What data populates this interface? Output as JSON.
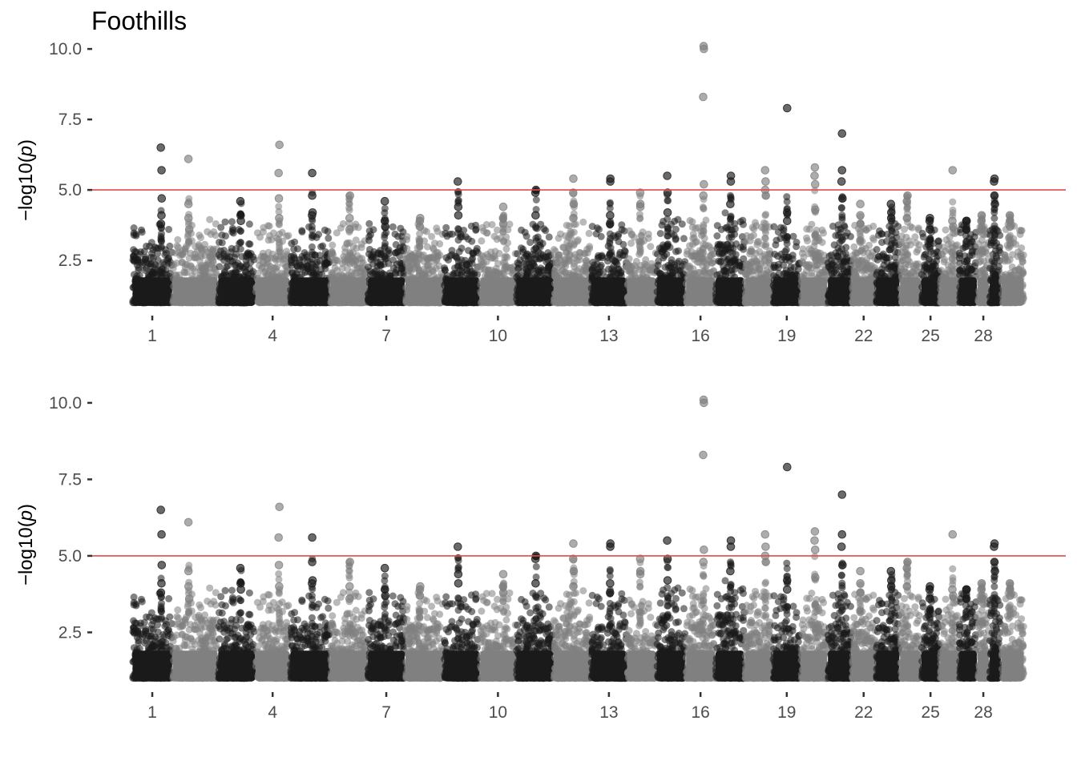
{
  "title": "Foothills",
  "colors": {
    "dark": "#1a1a1a",
    "light": "#808080",
    "threshold": "#e34a4a",
    "tick": "#333333"
  },
  "chart_data": [
    {
      "type": "scatter",
      "kind": "manhattan",
      "ylabel": "-log10(p)",
      "ylabel_prefix": "−log10(",
      "ylabel_var": "p",
      "ylabel_suffix": ")",
      "ylim": [
        0.6,
        10.6
      ],
      "yticks": [
        {
          "v": 2.5,
          "label": "2.5"
        },
        {
          "v": 5.0,
          "label": "5.0"
        },
        {
          "v": 7.5,
          "label": "7.5"
        },
        {
          "v": 10.0,
          "label": "10.0"
        }
      ],
      "threshold": 5.0,
      "xticks": [
        {
          "chr": 1,
          "label": "1"
        },
        {
          "chr": 4,
          "label": "4"
        },
        {
          "chr": 7,
          "label": "7"
        },
        {
          "chr": 10,
          "label": "10"
        },
        {
          "chr": 13,
          "label": "13"
        },
        {
          "chr": 16,
          "label": "16"
        },
        {
          "chr": 19,
          "label": "19"
        },
        {
          "chr": 22,
          "label": "22"
        },
        {
          "chr": 25,
          "label": "25"
        },
        {
          "chr": 28,
          "label": "28"
        }
      ],
      "chromosomes": [
        {
          "chr": 1,
          "start": 0,
          "end": 30,
          "baseline_max": 2.9,
          "peaks": [
            6.5,
            5.7,
            4.7,
            4.1,
            3.8
          ]
        },
        {
          "chr": 2,
          "start": 30,
          "end": 64,
          "baseline_max": 3.0,
          "peaks": [
            6.1,
            4.5,
            4.0,
            3.6
          ]
        },
        {
          "chr": 3,
          "start": 64,
          "end": 92,
          "baseline_max": 2.9,
          "peaks": [
            4.6,
            4.1,
            3.9
          ]
        },
        {
          "chr": 4,
          "start": 92,
          "end": 118,
          "baseline_max": 2.8,
          "peaks": [
            6.6,
            5.6,
            4.7,
            4.0
          ]
        },
        {
          "chr": 5,
          "start": 118,
          "end": 148,
          "baseline_max": 2.7,
          "peaks": [
            5.6,
            4.8,
            4.2,
            4.1
          ]
        },
        {
          "chr": 6,
          "start": 148,
          "end": 176,
          "baseline_max": 2.8,
          "peaks": [
            4.8,
            4.0,
            3.6
          ]
        },
        {
          "chr": 7,
          "start": 176,
          "end": 204,
          "baseline_max": 2.9,
          "peaks": [
            4.6,
            3.9,
            3.7
          ]
        },
        {
          "chr": 8,
          "start": 204,
          "end": 233,
          "baseline_max": 2.8,
          "peaks": [
            4.0,
            3.9,
            3.7
          ]
        },
        {
          "chr": 9,
          "start": 233,
          "end": 260,
          "baseline_max": 2.9,
          "peaks": [
            5.3,
            4.4,
            4.1
          ]
        },
        {
          "chr": 10,
          "start": 260,
          "end": 287,
          "baseline_max": 2.8,
          "peaks": [
            4.4,
            4.0,
            3.8
          ]
        },
        {
          "chr": 11,
          "start": 287,
          "end": 315,
          "baseline_max": 2.8,
          "peaks": [
            5.0,
            4.9,
            4.1
          ]
        },
        {
          "chr": 12,
          "start": 315,
          "end": 343,
          "baseline_max": 3.0,
          "peaks": [
            5.4,
            4.9,
            4.5,
            4.0
          ]
        },
        {
          "chr": 13,
          "start": 343,
          "end": 370,
          "baseline_max": 2.8,
          "peaks": [
            5.3,
            5.4,
            4.1,
            3.8
          ]
        },
        {
          "chr": 14,
          "start": 370,
          "end": 392,
          "baseline_max": 2.6,
          "peaks": [
            4.9,
            4.5,
            4.4
          ]
        },
        {
          "chr": 15,
          "start": 392,
          "end": 414,
          "baseline_max": 3.0,
          "peaks": [
            5.5,
            4.9,
            4.2
          ]
        },
        {
          "chr": 16,
          "start": 414,
          "end": 436,
          "baseline_max": 3.0,
          "peaks": [
            10.1,
            10.0,
            8.3,
            5.2,
            4.8
          ]
        },
        {
          "chr": 17,
          "start": 436,
          "end": 458,
          "baseline_max": 3.2,
          "peaks": [
            5.5,
            5.3,
            4.5
          ]
        },
        {
          "chr": 18,
          "start": 458,
          "end": 479,
          "baseline_max": 3.0,
          "peaks": [
            5.7,
            5.3,
            5.0,
            4.8
          ]
        },
        {
          "chr": 19,
          "start": 479,
          "end": 500,
          "baseline_max": 2.7,
          "peaks": [
            7.9,
            4.2,
            3.9
          ]
        },
        {
          "chr": 20,
          "start": 500,
          "end": 520,
          "baseline_max": 2.8,
          "peaks": [
            5.8,
            5.5,
            5.2,
            4.3
          ]
        },
        {
          "chr": 21,
          "start": 520,
          "end": 538,
          "baseline_max": 2.8,
          "peaks": [
            7.0,
            5.7,
            5.3,
            4.7
          ]
        },
        {
          "chr": 22,
          "start": 538,
          "end": 556,
          "baseline_max": 2.8,
          "peaks": [
            4.5,
            4.1,
            3.8
          ]
        },
        {
          "chr": 23,
          "start": 556,
          "end": 574,
          "baseline_max": 2.9,
          "peaks": [
            4.5,
            4.2,
            4.0
          ]
        },
        {
          "chr": 24,
          "start": 574,
          "end": 590,
          "baseline_max": 2.8,
          "peaks": [
            4.8,
            4.6,
            4.0
          ]
        },
        {
          "chr": 25,
          "start": 590,
          "end": 604,
          "baseline_max": 2.7,
          "peaks": [
            4.0,
            3.9,
            3.6
          ]
        },
        {
          "chr": 26,
          "start": 604,
          "end": 618,
          "baseline_max": 2.6,
          "peaks": [
            5.7,
            3.9,
            3.7
          ]
        },
        {
          "chr": 27,
          "start": 618,
          "end": 632,
          "baseline_max": 2.8,
          "peaks": [
            3.9,
            3.9,
            3.6
          ]
        },
        {
          "chr": 28,
          "start": 632,
          "end": 641,
          "baseline_max": 2.8,
          "peaks": [
            4.1,
            3.9,
            3.6
          ]
        },
        {
          "chr": 29,
          "start": 641,
          "end": 650,
          "baseline_max": 2.8,
          "peaks": [
            5.4,
            5.3,
            4.8,
            4.5
          ]
        },
        {
          "chr": 30,
          "start": 650,
          "end": 667,
          "baseline_max": 2.8,
          "peaks": [
            4.1,
            3.9,
            3.7
          ]
        }
      ]
    },
    {
      "type": "scatter",
      "kind": "manhattan",
      "ylabel": "-log10(p)",
      "ylabel_prefix": "−log10(",
      "ylabel_var": "p",
      "ylabel_suffix": ")",
      "ylim": [
        0.6,
        10.6
      ],
      "yticks": [
        {
          "v": 2.5,
          "label": "2.5"
        },
        {
          "v": 5.0,
          "label": "5.0"
        },
        {
          "v": 7.5,
          "label": "7.5"
        },
        {
          "v": 10.0,
          "label": "10.0"
        }
      ],
      "threshold": 5.0,
      "xticks": [
        {
          "chr": 1,
          "label": "1"
        },
        {
          "chr": 4,
          "label": "4"
        },
        {
          "chr": 7,
          "label": "7"
        },
        {
          "chr": 10,
          "label": "10"
        },
        {
          "chr": 13,
          "label": "13"
        },
        {
          "chr": 16,
          "label": "16"
        },
        {
          "chr": 19,
          "label": "19"
        },
        {
          "chr": 22,
          "label": "22"
        },
        {
          "chr": 25,
          "label": "25"
        },
        {
          "chr": 28,
          "label": "28"
        }
      ],
      "chromosomes": [
        {
          "chr": 1,
          "start": 0,
          "end": 30,
          "baseline_max": 2.9,
          "peaks": [
            6.5,
            5.7,
            4.7,
            4.1,
            3.8
          ]
        },
        {
          "chr": 2,
          "start": 30,
          "end": 64,
          "baseline_max": 3.0,
          "peaks": [
            6.1,
            4.5,
            4.0,
            3.6
          ]
        },
        {
          "chr": 3,
          "start": 64,
          "end": 92,
          "baseline_max": 2.9,
          "peaks": [
            4.6,
            4.1,
            3.9
          ]
        },
        {
          "chr": 4,
          "start": 92,
          "end": 118,
          "baseline_max": 2.8,
          "peaks": [
            6.6,
            5.6,
            4.7,
            4.0
          ]
        },
        {
          "chr": 5,
          "start": 118,
          "end": 148,
          "baseline_max": 2.7,
          "peaks": [
            5.6,
            4.8,
            4.2,
            4.1
          ]
        },
        {
          "chr": 6,
          "start": 148,
          "end": 176,
          "baseline_max": 2.8,
          "peaks": [
            4.8,
            4.0,
            3.6
          ]
        },
        {
          "chr": 7,
          "start": 176,
          "end": 204,
          "baseline_max": 2.9,
          "peaks": [
            4.6,
            3.9,
            3.7
          ]
        },
        {
          "chr": 8,
          "start": 204,
          "end": 233,
          "baseline_max": 2.8,
          "peaks": [
            4.0,
            3.9,
            3.7
          ]
        },
        {
          "chr": 9,
          "start": 233,
          "end": 260,
          "baseline_max": 2.9,
          "peaks": [
            5.3,
            4.4,
            4.1
          ]
        },
        {
          "chr": 10,
          "start": 260,
          "end": 287,
          "baseline_max": 2.8,
          "peaks": [
            4.4,
            4.0,
            3.8
          ]
        },
        {
          "chr": 11,
          "start": 287,
          "end": 315,
          "baseline_max": 2.8,
          "peaks": [
            5.0,
            4.9,
            4.1
          ]
        },
        {
          "chr": 12,
          "start": 315,
          "end": 343,
          "baseline_max": 3.0,
          "peaks": [
            5.4,
            4.9,
            4.5,
            4.0
          ]
        },
        {
          "chr": 13,
          "start": 343,
          "end": 370,
          "baseline_max": 2.8,
          "peaks": [
            5.3,
            5.4,
            4.1,
            3.8
          ]
        },
        {
          "chr": 14,
          "start": 370,
          "end": 392,
          "baseline_max": 2.6,
          "peaks": [
            4.9,
            4.5,
            4.4
          ]
        },
        {
          "chr": 15,
          "start": 392,
          "end": 414,
          "baseline_max": 3.0,
          "peaks": [
            5.5,
            4.9,
            4.2
          ]
        },
        {
          "chr": 16,
          "start": 414,
          "end": 436,
          "baseline_max": 3.0,
          "peaks": [
            10.1,
            10.0,
            8.3,
            5.2,
            4.8
          ]
        },
        {
          "chr": 17,
          "start": 436,
          "end": 458,
          "baseline_max": 3.2,
          "peaks": [
            5.5,
            5.3,
            4.5
          ]
        },
        {
          "chr": 18,
          "start": 458,
          "end": 479,
          "baseline_max": 3.0,
          "peaks": [
            5.7,
            5.3,
            5.0,
            4.8
          ]
        },
        {
          "chr": 19,
          "start": 479,
          "end": 500,
          "baseline_max": 2.7,
          "peaks": [
            7.9,
            4.2,
            3.9
          ]
        },
        {
          "chr": 20,
          "start": 500,
          "end": 520,
          "baseline_max": 2.8,
          "peaks": [
            5.8,
            5.5,
            5.2,
            4.3
          ]
        },
        {
          "chr": 21,
          "start": 520,
          "end": 538,
          "baseline_max": 2.8,
          "peaks": [
            7.0,
            5.7,
            5.3,
            4.7
          ]
        },
        {
          "chr": 22,
          "start": 538,
          "end": 556,
          "baseline_max": 2.8,
          "peaks": [
            4.5,
            4.1,
            3.8
          ]
        },
        {
          "chr": 23,
          "start": 556,
          "end": 574,
          "baseline_max": 2.9,
          "peaks": [
            4.5,
            4.2,
            4.0
          ]
        },
        {
          "chr": 24,
          "start": 574,
          "end": 590,
          "baseline_max": 2.8,
          "peaks": [
            4.8,
            4.6,
            4.0
          ]
        },
        {
          "chr": 25,
          "start": 590,
          "end": 604,
          "baseline_max": 2.7,
          "peaks": [
            4.0,
            3.9,
            3.6
          ]
        },
        {
          "chr": 26,
          "start": 604,
          "end": 618,
          "baseline_max": 2.6,
          "peaks": [
            5.7,
            3.9,
            3.7
          ]
        },
        {
          "chr": 27,
          "start": 618,
          "end": 632,
          "baseline_max": 2.8,
          "peaks": [
            3.9,
            3.9,
            3.6
          ]
        },
        {
          "chr": 28,
          "start": 632,
          "end": 641,
          "baseline_max": 2.8,
          "peaks": [
            4.1,
            3.9,
            3.6
          ]
        },
        {
          "chr": 29,
          "start": 641,
          "end": 650,
          "baseline_max": 2.8,
          "peaks": [
            5.4,
            5.3,
            4.8,
            4.5
          ]
        },
        {
          "chr": 30,
          "start": 650,
          "end": 667,
          "baseline_max": 2.8,
          "peaks": [
            4.1,
            3.9,
            3.7
          ]
        }
      ]
    }
  ]
}
